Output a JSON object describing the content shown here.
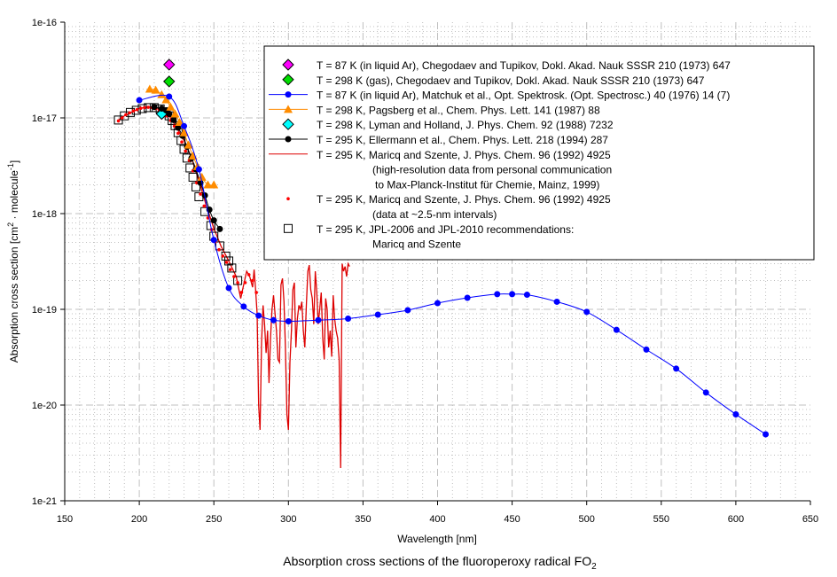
{
  "chart_data": {
    "type": "scatter",
    "title": "Absorption cross sections of the fluoroperoxy radical FO",
    "title_subscript": "2",
    "xlabel": "Wavelength [nm]",
    "ylabel": "Absorption cross section [cm",
    "ylabel_parts": {
      "pre": "Absorption cross section [cm",
      "sup1": "2",
      "mid": " · molecule",
      "sup2": "-1",
      "post": "]"
    },
    "xlim": [
      150,
      650
    ],
    "ylim": [
      1e-21,
      1e-16
    ],
    "yscale": "log",
    "grid": true,
    "legend_position": "top-right",
    "x_ticks": [
      "150",
      "200",
      "250",
      "300",
      "350",
      "400",
      "450",
      "500",
      "550",
      "600",
      "650"
    ],
    "x_tick_values": [
      150,
      200,
      250,
      300,
      350,
      400,
      450,
      500,
      550,
      600,
      650
    ],
    "y_ticks": [
      "1e-16",
      "1e-17",
      "1e-18",
      "1e-19",
      "1e-20",
      "1e-21"
    ],
    "y_tick_values": [
      1e-16,
      1e-17,
      1e-18,
      1e-19,
      1e-20,
      1e-21
    ],
    "series": [
      {
        "name": "Chegodaev-87K",
        "legend": "T = 87 K (in liquid Ar), Chegodaev and Tupikov, Dokl. Akad. Nauk SSSR 210 (1973) 647",
        "legend_lines": [
          "T = 87 K (in liquid Ar), Chegodaev and Tupikov, Dokl. Akad. Nauk SSSR 210 (1973) 647"
        ],
        "marker": "diamond",
        "color": "#ff00ff",
        "line": false,
        "x": [
          220
        ],
        "y": [
          3.6e-17
        ]
      },
      {
        "name": "Chegodaev-298K",
        "legend": "T = 298 K (gas), Chegodaev and Tupikov, Dokl. Akad. Nauk SSSR 210 (1973) 647",
        "legend_lines": [
          "T = 298 K (gas), Chegodaev and Tupikov, Dokl. Akad. Nauk SSSR 210 (1973) 647"
        ],
        "marker": "diamond",
        "color": "#00dd00",
        "line": false,
        "x": [
          220
        ],
        "y": [
          2.4e-17
        ]
      },
      {
        "name": "Matchuk",
        "legend": "T = 87 K (in liquid Ar), Matchuk et al., Opt. Spektrosk. (Opt. Spectrosc.) 40 (1976) 14 (7)",
        "legend_lines": [
          "T = 87 K (in liquid Ar), Matchuk et al., Opt. Spektrosk. (Opt. Spectrosc.) 40 (1976) 14 (7)"
        ],
        "marker": "circle",
        "color": "#0000ff",
        "line": true,
        "x": [
          200,
          220,
          230,
          240,
          250,
          260,
          270,
          280,
          290,
          300,
          320,
          340,
          360,
          380,
          400,
          420,
          440,
          450,
          460,
          480,
          500,
          520,
          540,
          560,
          580,
          600,
          620
        ],
        "y": [
          1.53e-17,
          1.67e-17,
          8.2e-18,
          2.9e-18,
          5.3e-19,
          1.67e-19,
          1.07e-19,
          8.6e-20,
          7.7e-20,
          7.5e-20,
          7.7e-20,
          8e-20,
          8.8e-20,
          9.8e-20,
          1.16e-19,
          1.32e-19,
          1.44e-19,
          1.44e-19,
          1.42e-19,
          1.2e-19,
          9.4e-20,
          6.1e-20,
          3.8e-20,
          2.4e-20,
          1.35e-20,
          8e-21,
          4.95e-21
        ]
      },
      {
        "name": "Pagsberg",
        "legend": "T = 298 K, Pagsberg et al., Chem. Phys. Lett. 141 (1987) 88",
        "legend_lines": [
          "T = 298 K, Pagsberg et al., Chem. Phys. Lett. 141 (1987) 88"
        ],
        "marker": "triangle",
        "color": "#ff8c00",
        "line": true,
        "x": [
          207,
          211,
          215,
          218,
          221,
          224,
          227,
          230,
          233,
          236,
          239,
          242,
          246,
          250
        ],
        "y": [
          2e-17,
          1.95e-17,
          1.75e-17,
          1.55e-17,
          1.3e-17,
          1.1e-17,
          9e-18,
          7e-18,
          5.2e-18,
          4e-18,
          3.1e-18,
          2.4e-18,
          2e-18,
          2e-18
        ]
      },
      {
        "name": "Lyman",
        "legend": "T = 298 K, Lyman and Holland, J. Phys. Chem. 92 (1988) 7232",
        "legend_lines": [
          "T = 298 K, Lyman and Holland, J. Phys. Chem. 92 (1988) 7232"
        ],
        "marker": "diamond",
        "color": "#00ffff",
        "line": false,
        "x": [
          215
        ],
        "y": [
          1.1e-17
        ]
      },
      {
        "name": "Ellermann",
        "legend": "T = 295 K, Ellermann et al., Chem. Phys. Lett. 218 (1994) 287",
        "legend_lines": [
          "T = 295 K, Ellermann et al., Chem. Phys. Lett. 218 (1994) 287"
        ],
        "marker": "circle",
        "color": "#000000",
        "line": true,
        "x": [
          210,
          215,
          218,
          220,
          223,
          226,
          229,
          232,
          235,
          238,
          241,
          244,
          247,
          250,
          254
        ],
        "y": [
          1.3e-17,
          1.25e-17,
          1.2e-17,
          1.1e-17,
          9.5e-18,
          7.9e-18,
          6.5e-18,
          5e-18,
          3.8e-18,
          2.9e-18,
          2.1e-18,
          1.55e-18,
          1.1e-18,
          8.5e-19,
          6.9e-19
        ]
      },
      {
        "name": "Maricq-highres",
        "legend": "T = 295 K, Maricq and Szente, J. Phys. Chem. 96 (1992) 4925",
        "legend_lines": [
          "T = 295 K, Maricq and Szente, J. Phys. Chem. 96 (1992) 4925",
          "(high-resolution data from personal communication",
          "to Max-Planck-Institut für Chemie, Mainz, 1999)"
        ],
        "marker": "none",
        "color": "#dd0000",
        "line": true,
        "x": [
          186,
          190,
          195,
          200,
          205,
          210,
          215,
          220,
          225,
          230,
          235,
          240,
          245,
          250,
          255,
          260,
          265,
          268,
          270,
          272,
          274,
          276,
          277,
          278,
          279,
          280,
          281,
          282,
          283,
          284,
          285,
          286,
          287,
          288,
          289,
          290,
          291,
          292,
          293,
          294,
          295,
          296,
          297,
          298,
          299,
          300,
          301,
          302,
          303,
          304,
          305,
          306,
          307,
          308,
          309,
          310,
          311,
          312,
          313,
          314,
          315,
          316,
          317,
          318,
          319,
          320,
          321,
          322,
          323,
          324,
          325,
          326,
          327,
          328,
          329,
          330,
          331,
          332,
          333,
          334,
          335,
          336,
          337,
          338,
          339,
          340,
          341
        ],
        "y": [
          9.5e-18,
          1.05e-17,
          1.15e-17,
          1.25e-17,
          1.3e-17,
          1.28e-17,
          1.2e-17,
          1.05e-17,
          8e-18,
          5.8e-18,
          3.8e-18,
          2.2e-18,
          1.2e-18,
          7e-19,
          4.5e-19,
          3.2e-19,
          2.2e-19,
          1.3e-19,
          1.8e-19,
          2.5e-19,
          2.2e-19,
          1.7e-19,
          2.6e-19,
          1.6e-19,
          9e-20,
          1e-20,
          5.5e-21,
          4.5e-20,
          1.1e-19,
          7e-20,
          3.5e-20,
          6e-20,
          1.7e-20,
          5e-20,
          1e-19,
          1.4e-19,
          9e-20,
          6e-20,
          3e-20,
          2.8e-20,
          1.8e-19,
          2.1e-19,
          1.2e-19,
          4e-20,
          8e-21,
          5.5e-21,
          2.8e-20,
          6e-20,
          1.6e-19,
          1.9e-19,
          4e-20,
          8e-20,
          1.1e-19,
          1e-19,
          1.2e-19,
          6e-20,
          4e-20,
          1.1e-19,
          2.5e-19,
          2.9e-19,
          1.6e-19,
          1.3e-19,
          7e-20,
          2.5e-19,
          1.5e-19,
          7e-20,
          1e-19,
          1.5e-19,
          5e-20,
          3e-20,
          1.3e-19,
          1e-19,
          4e-20,
          6e-20,
          3.2e-20,
          1.4e-19,
          8e-20,
          6e-20,
          5e-20,
          3e-20,
          2.2e-21,
          3e-19,
          2.5e-19,
          2.8e-19,
          2.2e-19,
          3e-19,
          2.8e-19
        ]
      },
      {
        "name": "Maricq-2.5nm",
        "legend": "T = 295 K, Maricq and Szente, J. Phys. Chem. 96 (1992) 4925",
        "legend_lines": [
          "T = 295 K, Maricq and Szente, J. Phys. Chem. 96 (1992) 4925",
          "(data at ~2.5-nm intervals)"
        ],
        "marker": "dot",
        "color": "#ff0000",
        "line": false,
        "x": [
          186,
          188.5,
          191,
          193.5,
          196,
          198.5,
          201,
          203.5,
          206,
          208.5,
          211,
          213.5,
          216,
          218.5,
          221,
          223.5,
          226,
          228.5,
          231,
          233.5,
          236,
          238.5,
          241,
          243.5,
          246,
          248.5,
          251,
          253.5,
          256,
          258.5,
          261,
          263.5,
          266,
          268.5,
          271,
          273.5,
          276,
          278.5
        ],
        "y": [
          9.3e-18,
          1e-17,
          1.08e-17,
          1.13e-17,
          1.18e-17,
          1.22e-17,
          1.26e-17,
          1.28e-17,
          1.29e-17,
          1.28e-17,
          1.25e-17,
          1.2e-17,
          1.13e-17,
          1.05e-17,
          9.4e-18,
          8.2e-18,
          6.9e-18,
          5.6e-18,
          4.5e-18,
          3.6e-18,
          2.8e-18,
          2.1e-18,
          1.6e-18,
          1.2e-18,
          9e-19,
          6.8e-19,
          5.1e-19,
          4.2e-19,
          3.6e-19,
          3.1e-19,
          2.6e-19,
          2.2e-19,
          1.9e-19,
          1.5e-19,
          1.9e-19,
          2.3e-19,
          2e-19,
          1.5e-19
        ]
      },
      {
        "name": "JPL",
        "legend": "T = 295 K, JPL-2006 and JPL-2010 recommendations: Maricq and Szente",
        "legend_lines": [
          "T = 295 K, JPL-2006 and JPL-2010 recommendations:",
          "Maricq and Szente"
        ],
        "marker": "square",
        "color": "#000000",
        "line": false,
        "x": [
          186,
          190,
          194,
          198,
          202,
          206,
          210,
          214,
          218,
          220,
          222,
          224,
          226,
          228,
          230,
          232,
          234,
          236,
          238,
          240,
          244,
          248,
          250,
          254,
          258,
          260,
          262,
          266
        ],
        "y": [
          9.5e-18,
          1.05e-17,
          1.14e-17,
          1.2e-17,
          1.25e-17,
          1.28e-17,
          1.28e-17,
          1.24e-17,
          1.16e-17,
          1.05e-17,
          9.4e-18,
          8.3e-18,
          7e-18,
          5.8e-18,
          4.7e-18,
          3.8e-18,
          3e-18,
          2.4e-18,
          1.9e-18,
          1.5e-18,
          1.05e-18,
          7.5e-19,
          5.8e-19,
          4.6e-19,
          3.6e-19,
          3.2e-19,
          2.7e-19,
          2e-19
        ]
      }
    ]
  }
}
